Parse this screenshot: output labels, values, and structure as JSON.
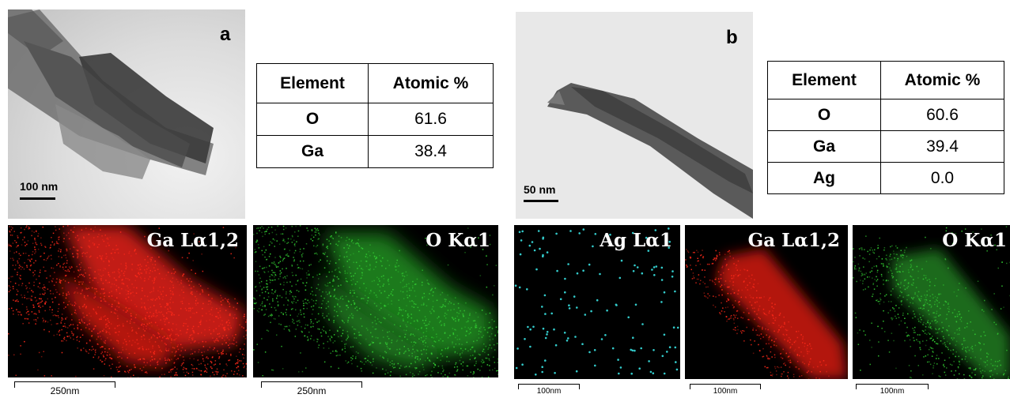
{
  "panel_a": {
    "letter": "a",
    "tem_scale": "100 nm",
    "table": {
      "headers": [
        "Element",
        "Atomic %"
      ],
      "rows": [
        [
          "O",
          "61.6"
        ],
        [
          "Ga",
          "38.4"
        ]
      ]
    },
    "maps": [
      {
        "label": "Ga Lα1,2",
        "scale": "250nm",
        "color": "#ff2a1a"
      },
      {
        "label": "O Kα1",
        "scale": "250nm",
        "color": "#33cc33"
      }
    ]
  },
  "panel_b": {
    "letter": "b",
    "tem_scale": "50 nm",
    "table": {
      "headers": [
        "Element",
        "Atomic %"
      ],
      "rows": [
        [
          "O",
          "60.6"
        ],
        [
          "Ga",
          "39.4"
        ],
        [
          "Ag",
          "0.0"
        ]
      ]
    },
    "maps": [
      {
        "label": "Ag Lα1",
        "scale": "100nm",
        "color": "#33cccc"
      },
      {
        "label": "Ga Lα1,2",
        "scale": "100nm",
        "color": "#ff2a1a"
      },
      {
        "label": "O Kα1",
        "scale": "100nm",
        "color": "#33cc33"
      }
    ]
  }
}
